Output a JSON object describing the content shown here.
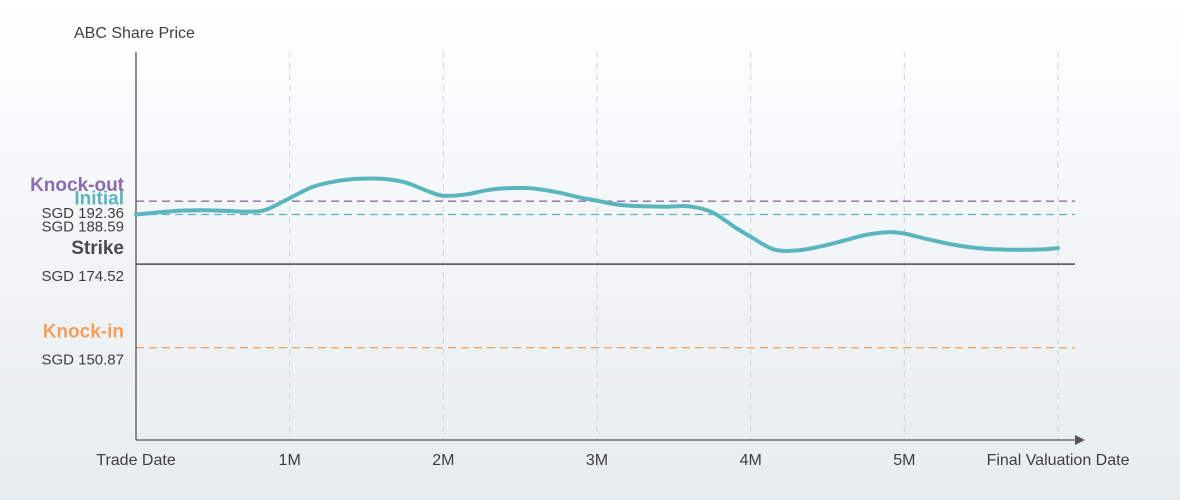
{
  "chart_data": {
    "type": "line",
    "title": "",
    "ylabel": "ABC Share Price",
    "xlabel": "",
    "categories": [
      "Trade Date",
      "1M",
      "2M",
      "3M",
      "4M",
      "5M",
      "Final Valuation Date"
    ],
    "ylim": [
      120,
      200
    ],
    "grid": true,
    "levels": [
      {
        "name": "Knock-out",
        "value_label": "SGD 192.36",
        "value": 192.36,
        "color": "#8e6bb0",
        "style": "dashed"
      },
      {
        "name": "Initial",
        "value_label": "SGD 188.59",
        "value": 188.59,
        "color": "#5bb5bf",
        "style": "dashed"
      },
      {
        "name": "Strike",
        "value_label": "SGD 174.52",
        "value": 174.52,
        "color": "#4a4a4a",
        "style": "solid"
      },
      {
        "name": "Knock-in",
        "value_label": "SGD 150.87",
        "value": 150.87,
        "color": "#f0a05c",
        "style": "dashed"
      }
    ],
    "series": [
      {
        "color": "#5bb5bf",
        "x": [
          0,
          0.15,
          0.3,
          0.45,
          0.6,
          0.75,
          0.85,
          1.0,
          1.15,
          1.3,
          1.45,
          1.6,
          1.75,
          1.9,
          2.0,
          2.15,
          2.3,
          2.45,
          2.6,
          2.75,
          2.9,
          3.0,
          3.15,
          3.3,
          3.45,
          3.6,
          3.75,
          3.9,
          4.0,
          4.15,
          4.3,
          4.45,
          4.6,
          4.75,
          4.9,
          5.0,
          5.15,
          5.3,
          5.45,
          5.6,
          5.75,
          5.9,
          6.0
        ],
        "y": [
          188.6,
          189.2,
          189.7,
          189.8,
          189.6,
          189.4,
          190.0,
          193.2,
          196.4,
          198.0,
          198.7,
          198.7,
          197.7,
          195.2,
          193.9,
          194.3,
          195.6,
          196.1,
          195.9,
          194.8,
          193.3,
          192.5,
          191.3,
          190.9,
          190.8,
          190.9,
          189.2,
          184.9,
          182.3,
          178.7,
          178.4,
          179.5,
          181.1,
          182.8,
          183.6,
          183.2,
          181.6,
          180.2,
          179.2,
          178.7,
          178.6,
          178.7,
          179.1
        ]
      }
    ]
  }
}
